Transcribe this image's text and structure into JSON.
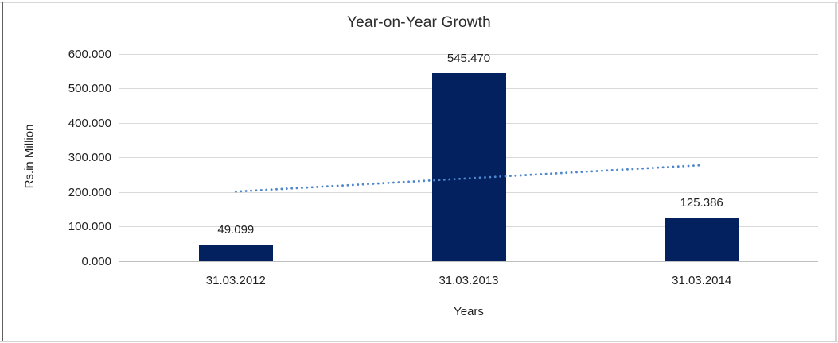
{
  "chart_data": {
    "type": "bar",
    "title": "Year-on-Year Growth",
    "categories": [
      "31.03.2012",
      "31.03.2013",
      "31.03.2014"
    ],
    "values": [
      49.099,
      545.47,
      125.386
    ],
    "data_labels": [
      "49.099",
      "545.470",
      "125.386"
    ],
    "xlabel": "Years",
    "ylabel": "Rs.in Million",
    "ylim": [
      0,
      600
    ],
    "ytick_values": [
      0,
      100,
      200,
      300,
      400,
      500,
      600
    ],
    "ytick_labels": [
      "0.000",
      "100.000",
      "200.000",
      "300.000",
      "400.000",
      "500.000",
      "600.000"
    ],
    "grid": true,
    "legend": "none",
    "colors": {
      "bar": "#02215e",
      "trendline": "#4e86cd",
      "gridline": "#d9d9d9",
      "axis_line": "#bfbfbf",
      "text": "#1f1f1f"
    },
    "trendline": {
      "style": "dotted",
      "start_value": 201.8,
      "end_value": 278.1
    }
  }
}
